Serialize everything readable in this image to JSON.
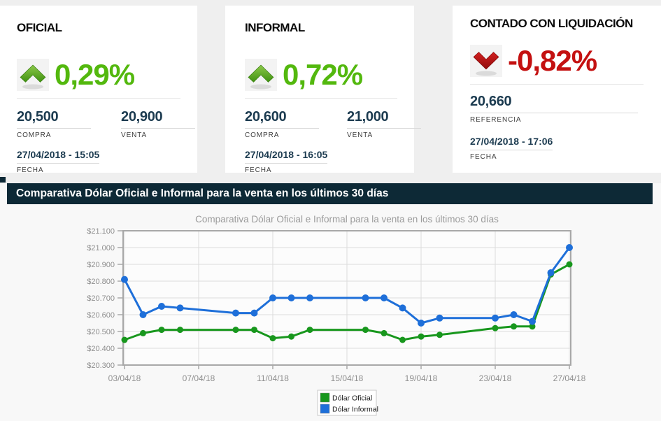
{
  "cards": [
    {
      "title": "OFICIAL",
      "direction": "up",
      "change": "0,29%",
      "change_color": "#53b80e",
      "values": [
        {
          "value": "20,500",
          "label": "COMPRA"
        },
        {
          "value": "20,900",
          "label": "VENTA"
        }
      ],
      "date": "27/04/2018 - 15:05",
      "date_label": "FECHA"
    },
    {
      "title": "INFORMAL",
      "direction": "up",
      "change": "0,72%",
      "change_color": "#53b80e",
      "values": [
        {
          "value": "20,600",
          "label": "COMPRA"
        },
        {
          "value": "21,000",
          "label": "VENTA"
        }
      ],
      "date": "27/04/2018 - 16:05",
      "date_label": "FECHA"
    },
    {
      "title": "CONTADO CON LIQUIDACIÓN",
      "direction": "down",
      "change": "-0,82%",
      "change_color": "#c41111",
      "values": [
        {
          "value": "20,660",
          "label": "REFERENCIA"
        }
      ],
      "date": "27/04/2018 - 17:06",
      "date_label": "FECHA"
    }
  ],
  "section_banner": {
    "text": "Comparativa Dólar Oficial e Informal para la venta en los últimos 30 días",
    "background": "#0d2936"
  },
  "chart_data": {
    "type": "line",
    "title": "Comparativa Dólar Oficial e Informal para la venta en los últimos 30 días",
    "xlabel": "",
    "ylabel": "",
    "x_dates": [
      "03/04/18",
      "04/04/18",
      "05/04/18",
      "06/04/18",
      "09/04/18",
      "10/04/18",
      "11/04/18",
      "12/04/18",
      "13/04/18",
      "16/04/18",
      "17/04/18",
      "18/04/18",
      "19/04/18",
      "20/04/18",
      "23/04/18",
      "24/04/18",
      "25/04/18",
      "26/04/18",
      "27/04/18"
    ],
    "x_days": [
      3,
      4,
      5,
      6,
      9,
      10,
      11,
      12,
      13,
      16,
      17,
      18,
      19,
      20,
      23,
      24,
      25,
      26,
      27
    ],
    "x_tick_labels": [
      "03/04/18",
      "07/04/18",
      "11/04/18",
      "15/04/18",
      "19/04/18",
      "23/04/18",
      "27/04/18"
    ],
    "x_tick_days": [
      3,
      7,
      11,
      15,
      19,
      23,
      27
    ],
    "xlim_days": [
      3,
      27
    ],
    "ylim": [
      20.3,
      21.1
    ],
    "ystep": 0.1,
    "y_prefix": "$",
    "y_tick_labels": [
      "$21.100",
      "$21.000",
      "$20.900",
      "$20.800",
      "$20.700",
      "$20.600",
      "$20.500",
      "$20.400",
      "$20.300"
    ],
    "grid": true,
    "legend_position": "bottom-center",
    "series": [
      {
        "name": "Dólar Oficial",
        "color": "#18971d",
        "marker_r": 4.5,
        "values": [
          20.45,
          20.49,
          20.51,
          20.51,
          20.51,
          20.51,
          20.46,
          20.47,
          20.51,
          20.51,
          20.49,
          20.45,
          20.47,
          20.48,
          20.52,
          20.53,
          20.53,
          20.84,
          20.9
        ]
      },
      {
        "name": "Dólar Informal",
        "color": "#1e6fd9",
        "marker_r": 5,
        "values": [
          20.81,
          20.6,
          20.65,
          20.64,
          20.61,
          20.61,
          20.7,
          20.7,
          20.7,
          20.7,
          20.7,
          20.64,
          20.55,
          20.58,
          20.58,
          20.6,
          20.56,
          20.85,
          21.0
        ]
      }
    ]
  }
}
